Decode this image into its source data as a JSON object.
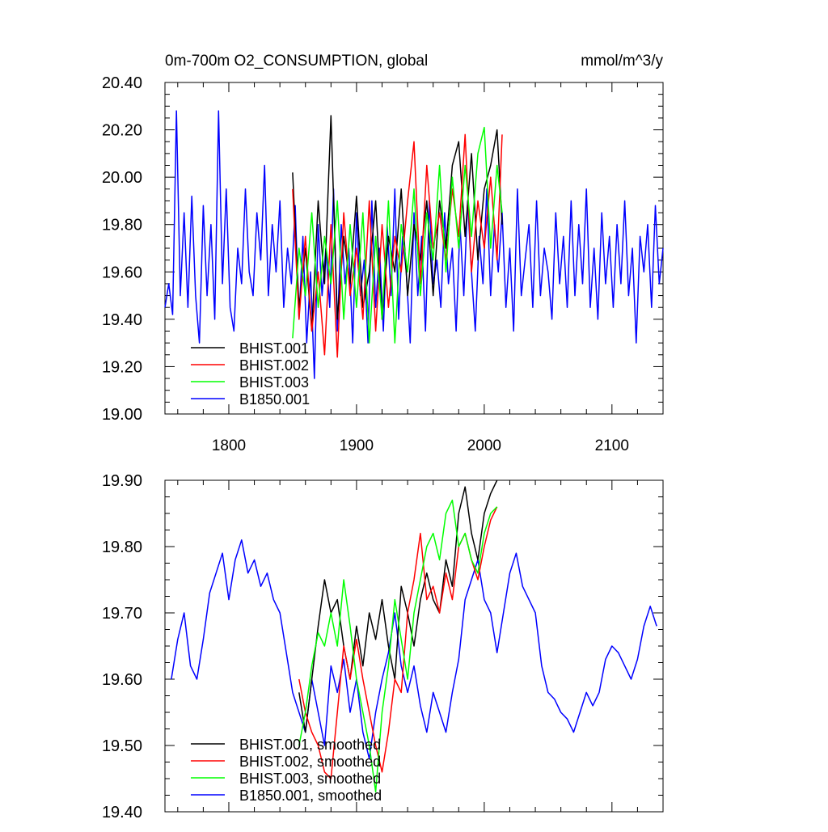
{
  "chart_data": [
    {
      "type": "line",
      "title_left": "0m-700m O2_CONSUMPTION, global",
      "title_right": "mmol/m^3/y",
      "xlim": [
        1750,
        2140
      ],
      "ylim": [
        19.0,
        20.4
      ],
      "xticks": [
        1800,
        1900,
        2000,
        2100
      ],
      "xtick_labels": [
        "1800",
        "1900",
        "2000",
        "2100"
      ],
      "yticks": [
        19.0,
        19.2,
        19.4,
        19.6,
        19.8,
        20.0,
        20.2,
        20.4
      ],
      "ytick_labels": [
        "19.00",
        "19.20",
        "19.40",
        "19.60",
        "19.80",
        "20.00",
        "20.20",
        "20.40"
      ],
      "legend_position": "bottom-left",
      "series": [
        {
          "name": "BHIST.001",
          "color": "#000000",
          "x": [
            1850,
            1855,
            1860,
            1865,
            1870,
            1875,
            1880,
            1885,
            1890,
            1895,
            1900,
            1905,
            1910,
            1915,
            1920,
            1925,
            1930,
            1935,
            1940,
            1945,
            1950,
            1955,
            1960,
            1965,
            1970,
            1975,
            1980,
            1985,
            1990,
            1995,
            2000,
            2005,
            2010,
            2014
          ],
          "y": [
            20.02,
            19.45,
            19.7,
            19.35,
            19.9,
            19.55,
            20.26,
            19.4,
            19.75,
            19.55,
            19.92,
            19.45,
            19.6,
            19.9,
            19.4,
            19.75,
            19.6,
            19.95,
            19.5,
            19.8,
            19.65,
            19.9,
            19.5,
            19.9,
            19.7,
            20.05,
            20.15,
            19.75,
            20.1,
            19.65,
            19.95,
            20.05,
            20.2,
            19.8
          ]
        },
        {
          "name": "BHIST.002",
          "color": "#ff0000",
          "x": [
            1850,
            1855,
            1860,
            1865,
            1870,
            1875,
            1880,
            1885,
            1890,
            1895,
            1900,
            1905,
            1910,
            1915,
            1920,
            1925,
            1930,
            1935,
            1940,
            1945,
            1950,
            1955,
            1960,
            1965,
            1970,
            1975,
            1980,
            1985,
            1990,
            1995,
            2000,
            2005,
            2010,
            2014
          ],
          "y": [
            19.95,
            19.4,
            19.75,
            19.35,
            19.6,
            19.25,
            19.8,
            19.24,
            19.85,
            19.5,
            19.7,
            19.4,
            19.9,
            19.35,
            19.8,
            19.45,
            19.75,
            19.6,
            19.9,
            20.15,
            19.55,
            20.05,
            19.7,
            19.85,
            19.65,
            19.95,
            19.75,
            20.18,
            19.6,
            19.9,
            19.7,
            20.0,
            19.65,
            20.18
          ]
        },
        {
          "name": "BHIST.003",
          "color": "#00ff00",
          "x": [
            1850,
            1855,
            1860,
            1865,
            1870,
            1875,
            1880,
            1885,
            1890,
            1895,
            1900,
            1905,
            1910,
            1915,
            1920,
            1925,
            1930,
            1935,
            1940,
            1945,
            1950,
            1955,
            1960,
            1965,
            1970,
            1975,
            1980,
            1985,
            1990,
            1995,
            2000,
            2005,
            2010,
            2014
          ],
          "y": [
            19.32,
            19.7,
            19.5,
            19.85,
            19.45,
            19.75,
            19.55,
            19.9,
            19.4,
            19.8,
            19.45,
            19.85,
            19.3,
            19.75,
            19.4,
            19.9,
            19.3,
            19.8,
            19.6,
            19.95,
            19.5,
            19.85,
            19.65,
            20.05,
            19.6,
            20.0,
            19.7,
            20.05,
            19.75,
            20.1,
            20.21,
            19.7,
            20.05,
            19.85
          ]
        },
        {
          "name": "B1850.001",
          "color": "#0000ff",
          "x": [
            1750,
            1753,
            1756,
            1759,
            1762,
            1765,
            1768,
            1771,
            1774,
            1777,
            1780,
            1783,
            1786,
            1789,
            1792,
            1795,
            1798,
            1801,
            1804,
            1807,
            1810,
            1813,
            1816,
            1819,
            1822,
            1825,
            1828,
            1831,
            1834,
            1837,
            1840,
            1843,
            1846,
            1849,
            1852,
            1855,
            1858,
            1861,
            1864,
            1867,
            1870,
            1873,
            1876,
            1879,
            1882,
            1885,
            1888,
            1891,
            1894,
            1897,
            1900,
            1903,
            1906,
            1909,
            1912,
            1915,
            1918,
            1921,
            1924,
            1927,
            1930,
            1933,
            1936,
            1939,
            1942,
            1945,
            1948,
            1951,
            1954,
            1957,
            1960,
            1963,
            1966,
            1969,
            1972,
            1975,
            1978,
            1981,
            1984,
            1987,
            1990,
            1993,
            1996,
            1999,
            2002,
            2005,
            2008,
            2011,
            2014,
            2017,
            2020,
            2023,
            2026,
            2029,
            2032,
            2035,
            2038,
            2041,
            2044,
            2047,
            2050,
            2053,
            2056,
            2059,
            2062,
            2065,
            2068,
            2071,
            2074,
            2077,
            2080,
            2083,
            2086,
            2089,
            2092,
            2095,
            2098,
            2101,
            2104,
            2107,
            2110,
            2113,
            2116,
            2119,
            2122,
            2125,
            2128,
            2131,
            2134,
            2137,
            2140
          ],
          "y": [
            19.45,
            19.55,
            19.42,
            20.28,
            19.5,
            19.85,
            19.45,
            19.92,
            19.5,
            19.3,
            19.88,
            19.5,
            19.8,
            19.4,
            20.28,
            19.55,
            19.95,
            19.45,
            19.35,
            19.7,
            19.55,
            19.95,
            19.6,
            19.5,
            19.85,
            19.65,
            20.05,
            19.5,
            19.8,
            19.6,
            19.9,
            19.45,
            19.7,
            19.55,
            19.88,
            19.4,
            19.75,
            19.3,
            19.6,
            19.15,
            19.8,
            19.5,
            19.7,
            19.45,
            19.95,
            19.35,
            19.8,
            19.55,
            19.7,
            19.3,
            19.85,
            19.5,
            19.65,
            19.3,
            19.9,
            19.45,
            19.7,
            19.35,
            19.8,
            19.5,
            19.95,
            19.4,
            19.75,
            19.6,
            19.3,
            19.85,
            19.5,
            19.75,
            19.35,
            19.9,
            19.55,
            19.65,
            19.45,
            19.85,
            19.55,
            19.7,
            19.35,
            19.8,
            19.5,
            19.9,
            19.6,
            19.35,
            19.75,
            19.55,
            19.95,
            19.5,
            19.8,
            19.6,
            19.85,
            19.45,
            19.7,
            19.35,
            19.95,
            19.5,
            19.65,
            19.8,
            19.45,
            19.9,
            19.5,
            19.7,
            19.6,
            19.4,
            19.85,
            19.55,
            19.75,
            19.45,
            19.9,
            19.5,
            19.8,
            19.55,
            19.95,
            19.45,
            19.7,
            19.4,
            19.85,
            19.55,
            19.75,
            19.45,
            19.8,
            19.55,
            19.9,
            19.5,
            19.7,
            19.3,
            19.75,
            19.6,
            19.8,
            19.45,
            19.88,
            19.55,
            19.7
          ]
        }
      ]
    },
    {
      "type": "line",
      "xlim": [
        1750,
        2140
      ],
      "ylim": [
        19.4,
        19.9
      ],
      "xticks": [
        1800,
        1900,
        2000,
        2100
      ],
      "yticks": [
        19.4,
        19.5,
        19.6,
        19.7,
        19.8,
        19.9
      ],
      "ytick_labels": [
        "19.40",
        "19.50",
        "19.60",
        "19.70",
        "19.80",
        "19.90"
      ],
      "legend_position": "bottom-left",
      "series": [
        {
          "name": "BHIST.001, smoothed",
          "color": "#000000",
          "x": [
            1855,
            1860,
            1865,
            1870,
            1875,
            1880,
            1885,
            1890,
            1895,
            1900,
            1905,
            1910,
            1915,
            1920,
            1925,
            1930,
            1935,
            1940,
            1945,
            1950,
            1955,
            1960,
            1965,
            1970,
            1975,
            1980,
            1985,
            1990,
            1995,
            2000,
            2005,
            2010
          ],
          "y": [
            19.58,
            19.52,
            19.6,
            19.68,
            19.75,
            19.7,
            19.72,
            19.65,
            19.6,
            19.68,
            19.62,
            19.7,
            19.66,
            19.72,
            19.65,
            19.6,
            19.74,
            19.7,
            19.65,
            19.72,
            19.76,
            19.72,
            19.7,
            19.78,
            19.74,
            19.85,
            19.89,
            19.82,
            19.78,
            19.85,
            19.88,
            19.9
          ]
        },
        {
          "name": "BHIST.002, smoothed",
          "color": "#ff0000",
          "x": [
            1855,
            1860,
            1865,
            1870,
            1875,
            1880,
            1885,
            1890,
            1895,
            1900,
            1905,
            1910,
            1915,
            1920,
            1925,
            1930,
            1935,
            1940,
            1945,
            1950,
            1955,
            1960,
            1965,
            1970,
            1975,
            1980,
            1985,
            1990,
            1995,
            2000,
            2005,
            2010
          ],
          "y": [
            19.6,
            19.55,
            19.52,
            19.5,
            19.46,
            19.45,
            19.55,
            19.65,
            19.6,
            19.66,
            19.6,
            19.55,
            19.5,
            19.46,
            19.52,
            19.6,
            19.58,
            19.7,
            19.75,
            19.82,
            19.72,
            19.74,
            19.7,
            19.76,
            19.72,
            19.8,
            19.82,
            19.78,
            19.75,
            19.8,
            19.84,
            19.86
          ]
        },
        {
          "name": "BHIST.003, smoothed",
          "color": "#00ff00",
          "x": [
            1855,
            1860,
            1865,
            1870,
            1875,
            1880,
            1885,
            1890,
            1895,
            1900,
            1905,
            1910,
            1915,
            1920,
            1925,
            1930,
            1935,
            1940,
            1945,
            1950,
            1955,
            1960,
            1965,
            1970,
            1975,
            1980,
            1985,
            1990,
            1995,
            2000,
            2005,
            2010
          ],
          "y": [
            19.5,
            19.55,
            19.62,
            19.67,
            19.65,
            19.7,
            19.65,
            19.75,
            19.68,
            19.6,
            19.55,
            19.5,
            19.43,
            19.55,
            19.62,
            19.72,
            19.66,
            19.6,
            19.7,
            19.75,
            19.8,
            19.82,
            19.78,
            19.85,
            19.87,
            19.8,
            19.82,
            19.78,
            19.76,
            19.82,
            19.85,
            19.86
          ]
        },
        {
          "name": "B1850.001, smoothed",
          "color": "#0000ff",
          "x": [
            1755,
            1760,
            1765,
            1770,
            1775,
            1780,
            1785,
            1790,
            1795,
            1800,
            1805,
            1810,
            1815,
            1820,
            1825,
            1830,
            1835,
            1840,
            1845,
            1850,
            1855,
            1860,
            1865,
            1870,
            1875,
            1880,
            1885,
            1890,
            1895,
            1900,
            1905,
            1910,
            1915,
            1920,
            1925,
            1930,
            1935,
            1940,
            1945,
            1950,
            1955,
            1960,
            1965,
            1970,
            1975,
            1980,
            1985,
            1990,
            1995,
            2000,
            2005,
            2010,
            2015,
            2020,
            2025,
            2030,
            2035,
            2040,
            2045,
            2050,
            2055,
            2060,
            2065,
            2070,
            2075,
            2080,
            2085,
            2090,
            2095,
            2100,
            2105,
            2110,
            2115,
            2120,
            2125,
            2130,
            2135
          ],
          "y": [
            19.6,
            19.66,
            19.7,
            19.62,
            19.6,
            19.66,
            19.73,
            19.76,
            19.79,
            19.72,
            19.78,
            19.81,
            19.76,
            19.78,
            19.74,
            19.76,
            19.72,
            19.7,
            19.64,
            19.58,
            19.55,
            19.52,
            19.6,
            19.55,
            19.5,
            19.62,
            19.58,
            19.63,
            19.55,
            19.6,
            19.52,
            19.48,
            19.55,
            19.6,
            19.64,
            19.7,
            19.62,
            19.58,
            19.62,
            19.56,
            19.52,
            19.58,
            19.55,
            19.52,
            19.58,
            19.63,
            19.72,
            19.75,
            19.78,
            19.72,
            19.7,
            19.64,
            19.7,
            19.76,
            19.79,
            19.74,
            19.72,
            19.7,
            19.62,
            19.58,
            19.57,
            19.55,
            19.54,
            19.52,
            19.55,
            19.58,
            19.56,
            19.58,
            19.63,
            19.65,
            19.64,
            19.62,
            19.6,
            19.63,
            19.68,
            19.71,
            19.68
          ]
        }
      ]
    }
  ]
}
